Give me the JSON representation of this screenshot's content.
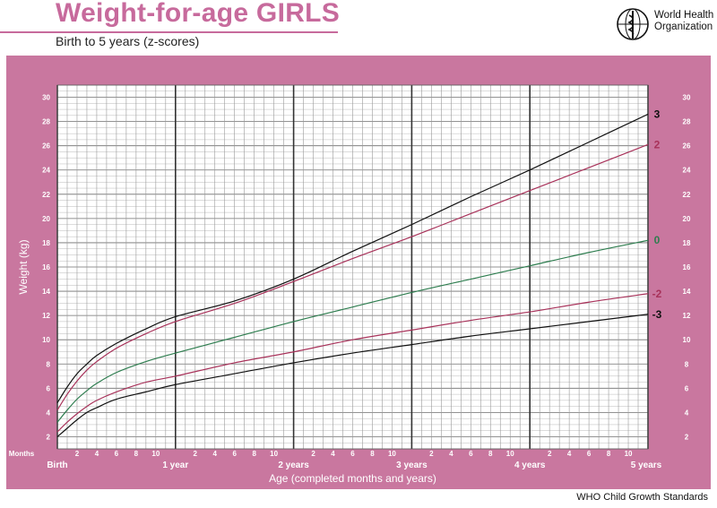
{
  "header": {
    "title": "Weight-for-age GIRLS",
    "subtitle": "Birth to 5 years (z-scores)",
    "org_line1": "World Health",
    "org_line2": "Organization",
    "footer": "WHO Child Growth Standards"
  },
  "colors": {
    "frame": "#c9779f",
    "grid_minor": "#9a9a9a",
    "grid_major": "#333333",
    "sd3": "#111111",
    "sd2": "#a8325a",
    "median": "#2e7d4f"
  },
  "chart_data": {
    "type": "line",
    "xlabel": "Age (completed months and years)",
    "ylabel": "Weight (kg)",
    "xlim": [
      0,
      60
    ],
    "ylim": [
      1,
      31
    ],
    "x_unit_label": "Months",
    "x_tick_months": [
      "2",
      "4",
      "6",
      "8",
      "10",
      "2",
      "4",
      "6",
      "8",
      "10",
      "2",
      "4",
      "6",
      "8",
      "10",
      "2",
      "4",
      "6",
      "8",
      "10",
      "2",
      "4",
      "6",
      "8",
      "10"
    ],
    "x_year_labels": [
      "Birth",
      "1 year",
      "2 years",
      "3 years",
      "4 years",
      "5 years"
    ],
    "y_ticks": [
      2,
      4,
      6,
      8,
      10,
      12,
      14,
      16,
      18,
      20,
      22,
      24,
      26,
      28,
      30
    ],
    "grid": true,
    "series": [
      {
        "name": "3",
        "color_key": "sd3",
        "x": [
          0,
          1,
          2,
          3,
          4,
          6,
          9,
          12,
          18,
          24,
          30,
          36,
          42,
          48,
          54,
          60
        ],
        "values": [
          4.8,
          6.1,
          7.2,
          8.0,
          8.7,
          9.7,
          10.9,
          11.9,
          13.2,
          15.0,
          17.3,
          19.5,
          21.8,
          24.0,
          26.3,
          28.6
        ]
      },
      {
        "name": "2",
        "color_key": "sd2",
        "x": [
          0,
          1,
          2,
          3,
          4,
          6,
          9,
          12,
          18,
          24,
          30,
          36,
          42,
          48,
          54,
          60
        ],
        "values": [
          4.2,
          5.5,
          6.6,
          7.5,
          8.2,
          9.3,
          10.5,
          11.5,
          13.0,
          14.8,
          16.7,
          18.5,
          20.4,
          22.3,
          24.2,
          26.1
        ]
      },
      {
        "name": "0",
        "color_key": "median",
        "x": [
          0,
          1,
          2,
          3,
          4,
          6,
          9,
          12,
          18,
          24,
          30,
          36,
          42,
          48,
          54,
          60
        ],
        "values": [
          3.2,
          4.2,
          5.1,
          5.8,
          6.4,
          7.3,
          8.2,
          8.9,
          10.2,
          11.5,
          12.7,
          13.9,
          15.0,
          16.1,
          17.2,
          18.2
        ]
      },
      {
        "name": "-2",
        "color_key": "sd2",
        "x": [
          0,
          1,
          2,
          3,
          4,
          6,
          9,
          12,
          18,
          24,
          30,
          36,
          42,
          48,
          54,
          60
        ],
        "values": [
          2.4,
          3.2,
          3.9,
          4.5,
          5.0,
          5.7,
          6.5,
          7.0,
          8.1,
          9.0,
          10.0,
          10.8,
          11.6,
          12.3,
          13.1,
          13.8
        ]
      },
      {
        "name": "-3",
        "color_key": "sd3",
        "x": [
          0,
          1,
          2,
          3,
          4,
          6,
          9,
          12,
          18,
          24,
          30,
          36,
          42,
          48,
          54,
          60
        ],
        "values": [
          2.0,
          2.7,
          3.4,
          4.0,
          4.4,
          5.1,
          5.7,
          6.3,
          7.2,
          8.1,
          8.9,
          9.6,
          10.3,
          10.9,
          11.5,
          12.1
        ]
      }
    ]
  }
}
